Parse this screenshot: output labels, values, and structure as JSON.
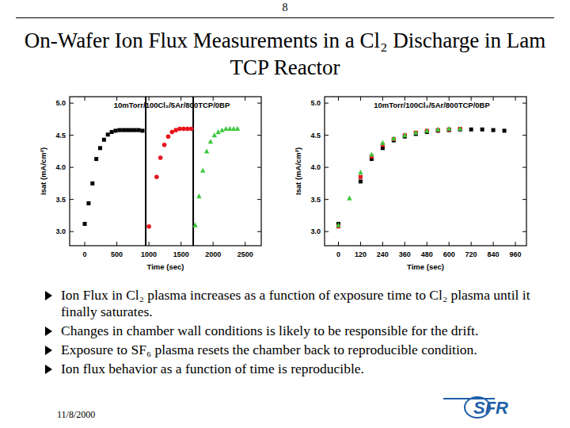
{
  "slide": {
    "page_number": "8",
    "title": "On-Wafer Ion Flux Measurements in a Cl₂ Discharge in Lam TCP Reactor",
    "bullets": [
      "Ion Flux in Cl₂ plasma increases as a function of exposure time to Cl₂ plasma until it finally saturates.",
      "Changes in chamber wall conditions is likely to be responsible for the drift.",
      "Exposure to SF₆ plasma resets the chamber back to reproducible condition.",
      "Ion flux behavior as a function of time is reproducible."
    ],
    "date": "11/8/2000",
    "logo": "SFR"
  },
  "chart_data": [
    {
      "type": "scatter",
      "title": "10mTorr/100Cl₂/5Ar/800TCP/0BP",
      "x_label": "Time (sec)",
      "y_label": "Isat (mA/cm²)",
      "xlim": [
        -235,
        2750
      ],
      "ylim": [
        2.78,
        5.1
      ],
      "xticks": [
        0,
        500,
        1000,
        1500,
        2000,
        2500
      ],
      "yticks": [
        {
          "value": 3,
          "label": "3.0"
        },
        {
          "value": 3.5,
          "label": "3.5"
        },
        {
          "value": 4,
          "label": "4.0"
        },
        {
          "value": 4.5,
          "label": "4.5"
        },
        {
          "value": 5,
          "label": "5.0"
        }
      ],
      "vlines": [
        950,
        1690
      ],
      "series": [
        {
          "color": "#000000",
          "marker": "square",
          "x": [
            0,
            60,
            120,
            180,
            240,
            300,
            360,
            420,
            480,
            540,
            600,
            660,
            720,
            780,
            840,
            900
          ],
          "values": [
            3.12,
            3.44,
            3.75,
            4.13,
            4.3,
            4.43,
            4.51,
            4.55,
            4.57,
            4.58,
            4.58,
            4.58,
            4.58,
            4.58,
            4.58,
            4.57
          ]
        },
        {
          "color": "#e8141c",
          "marker": "circle",
          "x": [
            1000,
            1120,
            1180,
            1240,
            1300,
            1360,
            1420,
            1480,
            1540,
            1600,
            1660
          ],
          "values": [
            3.08,
            3.85,
            4.15,
            4.35,
            4.48,
            4.55,
            4.58,
            4.6,
            4.6,
            4.6,
            4.6
          ]
        },
        {
          "color": "#3cc83c",
          "marker": "triangle",
          "x": [
            1720,
            1780,
            1840,
            1900,
            1960,
            2020,
            2080,
            2140,
            2200,
            2260,
            2320,
            2380
          ],
          "values": [
            3.1,
            3.55,
            3.95,
            4.25,
            4.4,
            4.5,
            4.55,
            4.58,
            4.6,
            4.6,
            4.6,
            4.6
          ]
        }
      ]
    },
    {
      "type": "scatter",
      "title": "10mTorr/100Cl₂/5Ar/800TCP/0BP",
      "x_label": "Time (sec)",
      "y_label": "Isat (mA/cm²)",
      "xlim": [
        -75,
        1020
      ],
      "ylim": [
        2.78,
        5.1
      ],
      "xticks": [
        0,
        120,
        240,
        360,
        480,
        600,
        720,
        840,
        960
      ],
      "yticks": [
        {
          "value": 3,
          "label": "3.0"
        },
        {
          "value": 3.5,
          "label": "3.5"
        },
        {
          "value": 4,
          "label": "4.0"
        },
        {
          "value": 4.5,
          "label": "4.5"
        },
        {
          "value": 5,
          "label": "5.0"
        }
      ],
      "series": [
        {
          "color": "#000000",
          "marker": "square",
          "x": [
            0,
            120,
            180,
            240,
            300,
            360,
            420,
            480,
            540,
            600,
            660,
            720,
            780,
            840,
            900
          ],
          "values": [
            3.12,
            3.78,
            4.13,
            4.3,
            4.42,
            4.48,
            4.52,
            4.55,
            4.57,
            4.58,
            4.59,
            4.59,
            4.59,
            4.58,
            4.57
          ]
        },
        {
          "color": "#e8141c",
          "marker": "square",
          "x": [
            0,
            120,
            180,
            240,
            300,
            360,
            420,
            480,
            540,
            600,
            660
          ],
          "values": [
            3.08,
            3.85,
            4.17,
            4.35,
            4.44,
            4.5,
            4.54,
            4.57,
            4.58,
            4.59,
            4.6
          ]
        },
        {
          "color": "#3cc83c",
          "marker": "triangle",
          "x": [
            0,
            60,
            120,
            180,
            240,
            300,
            360,
            420,
            480,
            540,
            600,
            660
          ],
          "values": [
            3.1,
            3.52,
            3.92,
            4.2,
            4.38,
            4.45,
            4.5,
            4.54,
            4.57,
            4.59,
            4.6,
            4.6
          ]
        }
      ]
    }
  ]
}
